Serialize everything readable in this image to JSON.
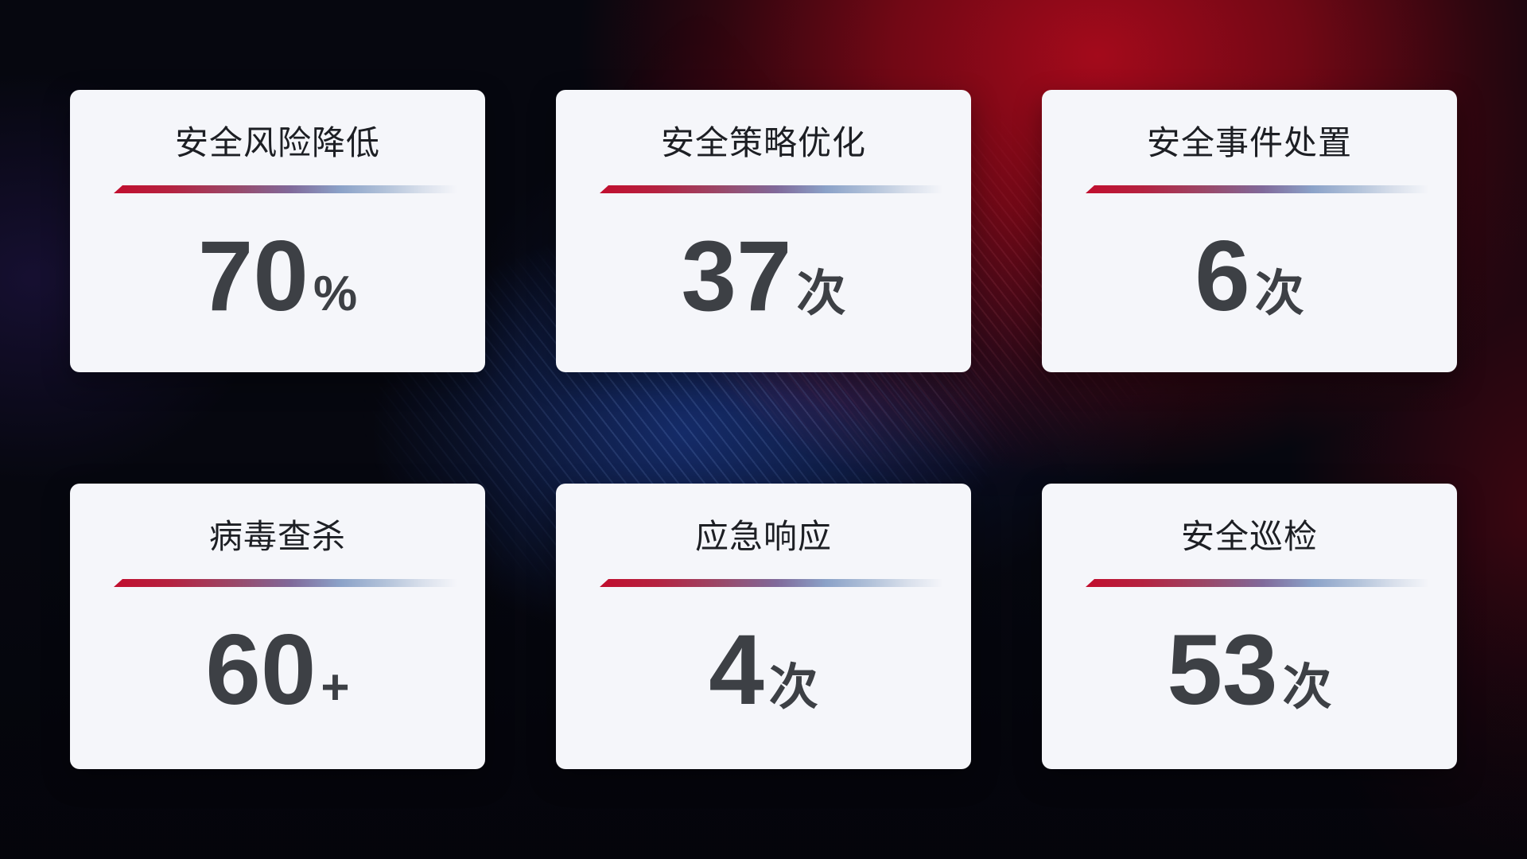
{
  "cards": [
    {
      "title": "安全风险降低",
      "value": "70",
      "unit": "%"
    },
    {
      "title": "安全策略优化",
      "value": "37",
      "unit": "次"
    },
    {
      "title": "安全事件处置",
      "value": "6",
      "unit": "次"
    },
    {
      "title": "病毒查杀",
      "value": "60",
      "unit": "+"
    },
    {
      "title": "应急响应",
      "value": "4",
      "unit": "次"
    },
    {
      "title": "安全巡检",
      "value": "53",
      "unit": "次"
    }
  ],
  "colors": {
    "accent_red": "#c10e2e",
    "divider_blue": "#8ba2c8",
    "card_background": "#f5f6fa",
    "title_text": "#1d1f24",
    "value_text": "#3d4045",
    "background_base": "#06070f",
    "background_red_glow": "#ac0a1c",
    "background_blue_glow": "#1c3e96"
  }
}
